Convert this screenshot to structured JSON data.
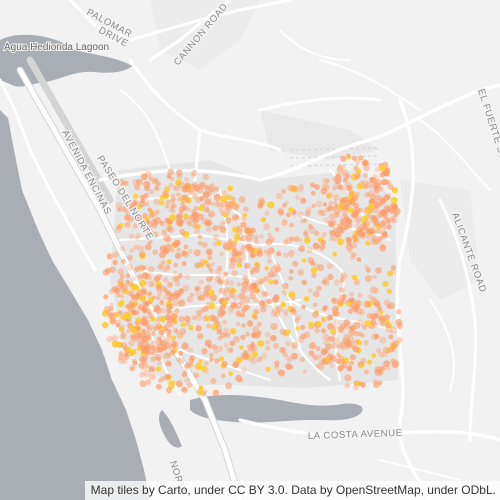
{
  "map": {
    "labels": {
      "lagoon": "Agua Hedionda Lagoon",
      "palomar": "PALOMAR",
      "paseo": "PASEO",
      "cannon": "CANNON ROAD",
      "avenida": "AVENIDA ENCINAS",
      "paseo_del_norte": "PASEO DEL NORTE",
      "el_fuerte": "EL FUERTE ST",
      "alicante": "ALICANTE ROAD",
      "la_costa": "LA COSTA AVENUE",
      "frwy": "NORTH",
      "drive": "DRIVE",
      "fragment": "S"
    },
    "attribution": "Map tiles by Carto, under CC BY 3.0. Data by OpenStreetMap, under ODbL.",
    "colors": {
      "land": "#f2f2f2",
      "water": "#a6adb4",
      "road": "#ffffff",
      "road_casing": "#d8d8d8",
      "point_fill": "#ff9a66",
      "point_highlight": "#ffcc33"
    }
  }
}
